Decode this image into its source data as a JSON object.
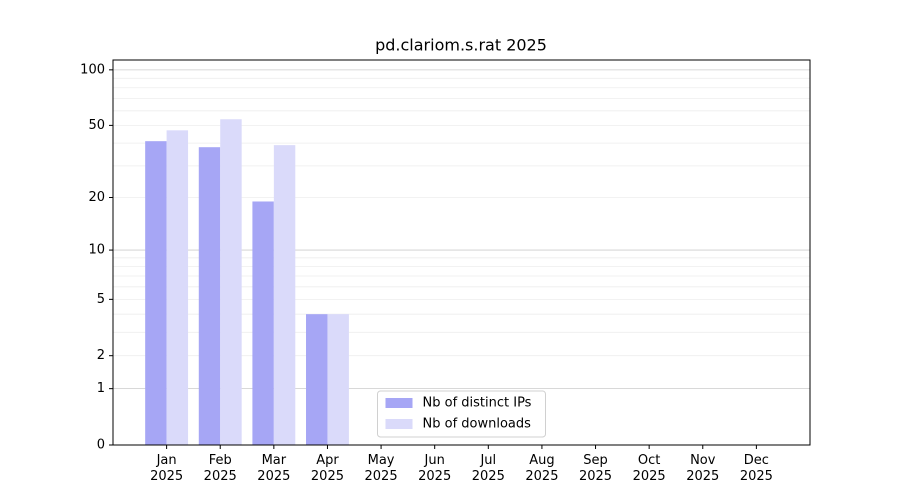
{
  "chart_data": {
    "type": "bar",
    "title": "pd.clariom.s.rat 2025",
    "categories": [
      "Jan\n2025",
      "Feb\n2025",
      "Mar\n2025",
      "Apr\n2025",
      "May\n2025",
      "Jun\n2025",
      "Jul\n2025",
      "Aug\n2025",
      "Sep\n2025",
      "Oct\n2025",
      "Nov\n2025",
      "Dec\n2025"
    ],
    "series": [
      {
        "name": "Nb of distinct IPs",
        "color": "#a6a6f5",
        "values": [
          41,
          38,
          19,
          4,
          0,
          0,
          0,
          0,
          0,
          0,
          0,
          0
        ]
      },
      {
        "name": "Nb of downloads",
        "color": "#dadafa",
        "values": [
          47,
          54,
          39,
          4,
          0,
          0,
          0,
          0,
          0,
          0,
          0,
          0
        ]
      }
    ],
    "scale": "log1p",
    "ylim": [
      0,
      113
    ],
    "yticks": [
      0,
      1,
      2,
      5,
      10,
      20,
      50,
      100
    ],
    "minor_yticks": [
      3,
      4,
      6,
      7,
      8,
      9,
      30,
      40,
      60,
      70,
      80,
      90
    ],
    "grid": true,
    "legend": "lower center"
  }
}
